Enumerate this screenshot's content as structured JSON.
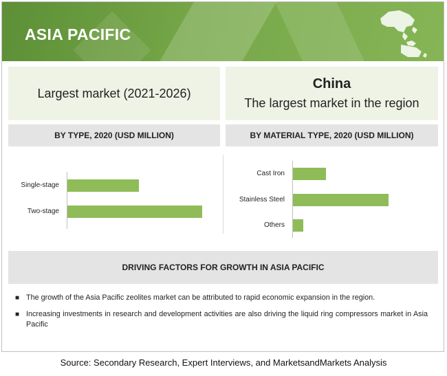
{
  "banner": {
    "title": "ASIA PACIFIC"
  },
  "largest_market": {
    "text": "Largest market  (2021-2026)"
  },
  "china_panel": {
    "title": "China",
    "subtitle": "The largest market in the region"
  },
  "colors": {
    "banner_green": "#76a748",
    "bar_green": "#8fbc58",
    "panel_light": "#eef3e6",
    "panel_grey": "#e4e4e4"
  },
  "icons": {
    "banner_map": "asia-pacific-map-icon",
    "bullet": "square-bullet-icon"
  },
  "chart_data": [
    {
      "type": "bar",
      "orientation": "horizontal",
      "title": "BY TYPE, 2020 (USD MILLION)",
      "categories": [
        "Single-stage",
        "Two-stage"
      ],
      "values": [
        105,
        198
      ],
      "xlim": [
        0,
        200
      ],
      "grid": false,
      "value_axis_labels": false
    },
    {
      "type": "bar",
      "orientation": "horizontal",
      "title": "BY MATERIAL TYPE, 2020 (USD MILLION)",
      "categories": [
        "Cast Iron",
        "Stainless Steel",
        "Others"
      ],
      "values": [
        48,
        140,
        15
      ],
      "xlim": [
        0,
        200
      ],
      "grid": false,
      "value_axis_labels": false
    }
  ],
  "driving_factors": {
    "title": "DRIVING FACTORS FOR GROWTH IN ASIA PACIFIC",
    "bullets": [
      "The growth of the Asia Pacific zeolites market can be attributed to rapid economic expansion in the region.",
      "Increasing investments in research and development activities are also driving the liquid ring compressors market in Asia Pacific"
    ]
  },
  "source": "Source: Secondary Research, Expert Interviews, and MarketsandMarkets Analysis"
}
